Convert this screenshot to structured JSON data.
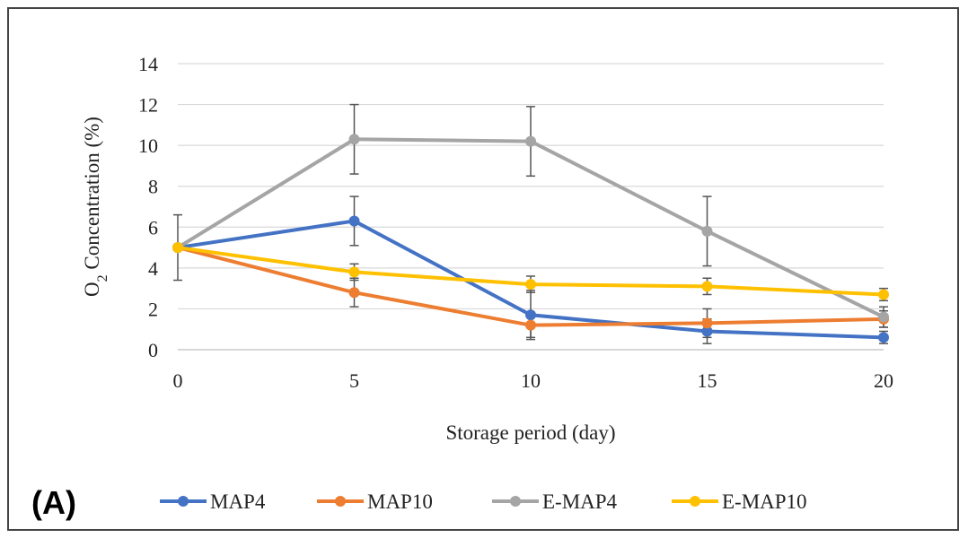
{
  "chart_data": {
    "type": "line",
    "panel_label": "(A)",
    "xlabel": "Storage period (day)",
    "ylabel": {
      "prefix": "O",
      "subscript": "2",
      "suffix": " Concentration (%)"
    },
    "x": [
      0,
      5,
      10,
      15,
      20
    ],
    "xticks": [
      "0",
      "5",
      "10",
      "15",
      "20"
    ],
    "ylim": [
      0,
      14
    ],
    "yticks": [
      "0",
      "2",
      "4",
      "6",
      "8",
      "10",
      "12",
      "14"
    ],
    "grid": true,
    "legend_position": "bottom",
    "series": [
      {
        "name": "MAP4",
        "color": "#4472C4",
        "values": [
          5.0,
          6.3,
          1.7,
          0.9,
          0.6
        ],
        "errors": [
          1.6,
          1.2,
          1.2,
          0.6,
          0.3
        ]
      },
      {
        "name": "MAP10",
        "color": "#ED7D31",
        "values": [
          5.0,
          2.8,
          1.2,
          1.3,
          1.5
        ],
        "errors": [
          0.0,
          0.7,
          0.6,
          0.7,
          0.4
        ]
      },
      {
        "name": "E-MAP4",
        "color": "#A5A5A5",
        "values": [
          5.0,
          10.3,
          10.2,
          5.8,
          1.6
        ],
        "errors": [
          0.0,
          1.7,
          1.7,
          1.7,
          0.5
        ]
      },
      {
        "name": "E-MAP10",
        "color": "#FFC000",
        "values": [
          5.0,
          3.8,
          3.2,
          3.1,
          2.7
        ],
        "errors": [
          0.0,
          0.4,
          0.4,
          0.4,
          0.3
        ]
      }
    ]
  }
}
